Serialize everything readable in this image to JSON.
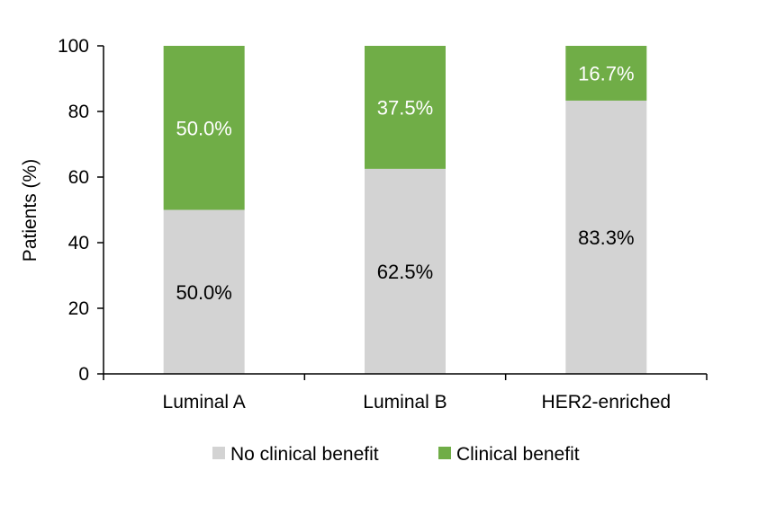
{
  "chart_data": {
    "type": "bar",
    "stacked": true,
    "categories": [
      "Luminal A",
      "Luminal B",
      "HER2-enriched"
    ],
    "series": [
      {
        "name": "No clinical benefit",
        "values": [
          50.0,
          62.5,
          83.3
        ],
        "labels": [
          "50.0%",
          "62.5%",
          "83.3%"
        ],
        "color": "#d3d3d3",
        "label_color": "#000000"
      },
      {
        "name": "Clinical benefit",
        "values": [
          50.0,
          37.5,
          16.7
        ],
        "labels": [
          "50.0%",
          "37.5%",
          "16.7%"
        ],
        "color": "#70ad47",
        "label_color": "#ffffff"
      }
    ],
    "ylabel": "Patients (%)",
    "ylim": [
      0,
      100
    ],
    "yticks": [
      0,
      20,
      40,
      60,
      80,
      100
    ],
    "grid": false,
    "legend_position": "bottom"
  }
}
